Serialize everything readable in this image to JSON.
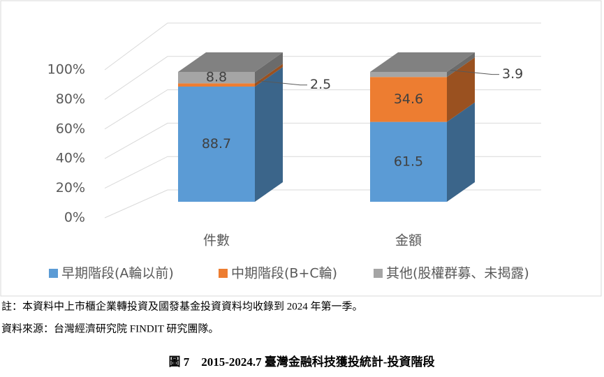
{
  "chart_data": {
    "type": "bar",
    "stacked": true,
    "categories": [
      "件數",
      "金額"
    ],
    "series": [
      {
        "name": "早期階段(A輪以前)",
        "color": "#5b9bd5",
        "values": [
          88.7,
          61.5
        ]
      },
      {
        "name": "中期階段(B+C輪)",
        "color": "#ed7d31",
        "values": [
          2.5,
          34.6
        ]
      },
      {
        "name": "其他(股權群募、未揭露)",
        "color": "#a5a5a5",
        "values": [
          8.8,
          3.9
        ]
      }
    ],
    "ylim": [
      0,
      100
    ],
    "yticks": [
      {
        "value": 0,
        "label": "0%"
      },
      {
        "value": 20,
        "label": "20%"
      },
      {
        "value": 40,
        "label": "40%"
      },
      {
        "value": 60,
        "label": "60%"
      },
      {
        "value": 80,
        "label": "80%"
      },
      {
        "value": 100,
        "label": "100%"
      }
    ],
    "grid": true,
    "legend": "bottom"
  },
  "note": "註：本資料中上市櫃企業轉投資及國發基金投資資料均收錄到 2024 年第一季。",
  "source": "資料來源：台灣經濟研究院 FINDIT 研究團隊。",
  "caption": "圖 7　2015-2024.7 臺灣金融科技獲投統計-投資階段"
}
